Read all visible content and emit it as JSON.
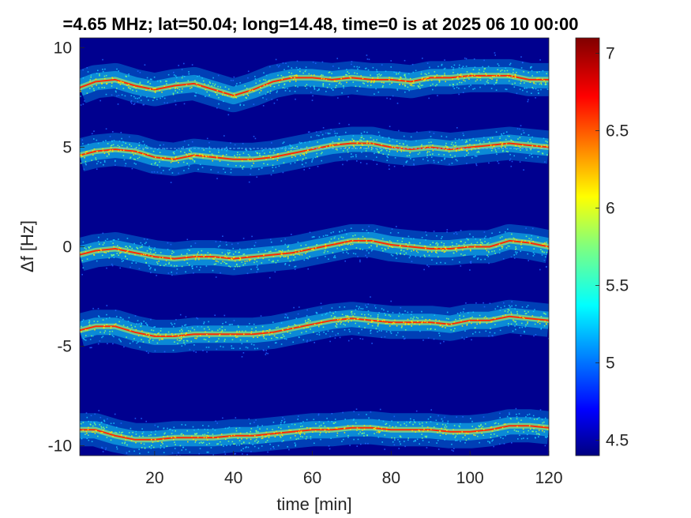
{
  "chart_data": {
    "type": "heatmap",
    "title": "=4.65 MHz;  lat=50.04; long=14.48, time=0 is at 2025 06 10 00:00",
    "xlabel": "time [min]",
    "ylabel": "Δf [Hz]",
    "xlim": [
      1,
      120
    ],
    "ylim": [
      -10.5,
      10.5
    ],
    "x_ticks": [
      20,
      40,
      60,
      80,
      100,
      120
    ],
    "y_ticks": [
      10,
      5,
      0,
      -5,
      -10
    ],
    "colorbar": {
      "range": [
        4.4,
        7.1
      ],
      "ticks": [
        7,
        6.5,
        6,
        5.5,
        5,
        4.5
      ],
      "colormap": "jet"
    },
    "background_color": "#00008f",
    "reference_line_color": "#ff2a00",
    "series": [
      {
        "x": [
          1,
          5,
          10,
          15,
          20,
          25,
          30,
          35,
          40,
          45,
          50,
          55,
          60,
          65,
          70,
          75,
          80,
          85,
          90,
          95,
          100,
          105,
          110,
          115,
          120
        ],
        "values": [
          8.0,
          8.3,
          8.4,
          8.1,
          7.9,
          8.1,
          8.2,
          7.9,
          7.6,
          7.9,
          8.3,
          8.5,
          8.5,
          8.4,
          8.5,
          8.4,
          8.4,
          8.3,
          8.5,
          8.5,
          8.6,
          8.6,
          8.6,
          8.4,
          8.4
        ]
      },
      {
        "x": [
          1,
          5,
          10,
          15,
          20,
          25,
          30,
          35,
          40,
          45,
          50,
          55,
          60,
          65,
          70,
          75,
          80,
          85,
          90,
          95,
          100,
          105,
          110,
          115,
          120
        ],
        "values": [
          4.6,
          4.8,
          4.9,
          4.8,
          4.5,
          4.4,
          4.6,
          4.5,
          4.4,
          4.4,
          4.5,
          4.7,
          4.9,
          5.1,
          5.2,
          5.2,
          5.0,
          4.9,
          5.0,
          4.9,
          5.0,
          5.1,
          5.2,
          5.1,
          5.0
        ]
      },
      {
        "x": [
          1,
          5,
          10,
          15,
          20,
          25,
          30,
          35,
          40,
          45,
          50,
          55,
          60,
          65,
          70,
          75,
          80,
          85,
          90,
          95,
          100,
          105,
          110,
          115,
          120
        ],
        "values": [
          -0.4,
          -0.2,
          -0.1,
          -0.3,
          -0.5,
          -0.6,
          -0.5,
          -0.5,
          -0.6,
          -0.5,
          -0.4,
          -0.3,
          -0.1,
          0.1,
          0.3,
          0.3,
          0.1,
          0.0,
          -0.1,
          -0.1,
          0.0,
          0.0,
          0.3,
          0.2,
          0.0
        ]
      },
      {
        "x": [
          1,
          5,
          10,
          15,
          20,
          25,
          30,
          35,
          40,
          45,
          50,
          55,
          60,
          65,
          70,
          75,
          80,
          85,
          90,
          95,
          100,
          105,
          110,
          115,
          120
        ],
        "values": [
          -4.2,
          -4.0,
          -4.0,
          -4.3,
          -4.5,
          -4.5,
          -4.4,
          -4.4,
          -4.4,
          -4.4,
          -4.3,
          -4.1,
          -3.9,
          -3.7,
          -3.6,
          -3.7,
          -3.8,
          -3.8,
          -3.8,
          -3.9,
          -3.7,
          -3.7,
          -3.5,
          -3.6,
          -3.7
        ]
      },
      {
        "x": [
          1,
          5,
          10,
          15,
          20,
          25,
          30,
          35,
          40,
          45,
          50,
          55,
          60,
          65,
          70,
          75,
          80,
          85,
          90,
          95,
          100,
          105,
          110,
          115,
          120
        ],
        "values": [
          -9.2,
          -9.2,
          -9.5,
          -9.7,
          -9.7,
          -9.6,
          -9.6,
          -9.6,
          -9.5,
          -9.5,
          -9.4,
          -9.3,
          -9.2,
          -9.2,
          -9.1,
          -9.1,
          -9.2,
          -9.2,
          -9.2,
          -9.3,
          -9.3,
          -9.2,
          -9.0,
          -9.0,
          -9.1
        ]
      }
    ]
  }
}
